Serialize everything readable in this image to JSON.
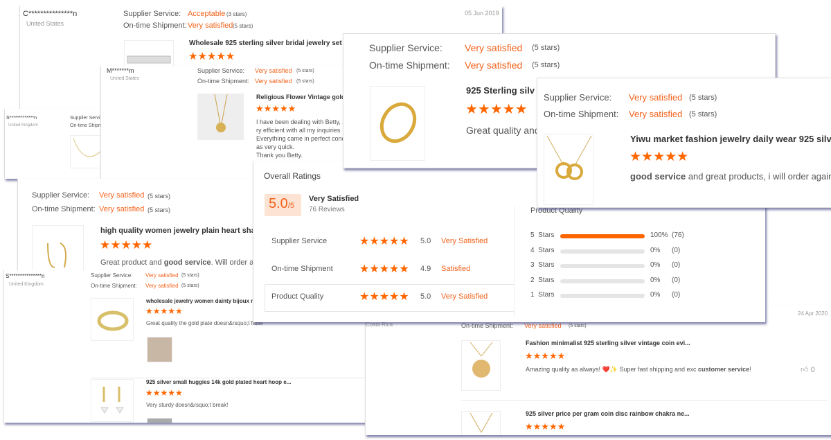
{
  "accent": "#f60",
  "cardA": {
    "name": "C***************n",
    "country": "United States",
    "supplier_label": "Supplier Service:",
    "supplier_value": "Acceptable",
    "supplier_stars": "(3 stars)",
    "shipment_label": "On-time Shipment:",
    "shipment_value": "Very satisfied",
    "shipment_stars": "(5 stars)",
    "date": "05 Jun 2019",
    "product_title": "Wholesale 925 sterling silver bridal jewelry set ova",
    "rating": 5
  },
  "cardB": {
    "name": "S*************n",
    "country": "United Kingdom",
    "supplier_label": "Supplier Service",
    "shipment_label": "On-time Shipme"
  },
  "cardC": {
    "name": "M*******m",
    "country": "United States",
    "supplier_label": "Supplier Service:",
    "supplier_value": "Very satisfied",
    "supplier_stars": "(5 stars)",
    "shipment_label": "On-time Shipment:",
    "shipment_value": "Very satisfied",
    "shipment_stars": "(5 stars)",
    "product_title": "Religious Flower Vintage golder",
    "comment": [
      "I have been dealing with Betty, a",
      "ry efficient with all my inquiries",
      "Everything came in perfect conc",
      "as very quick.",
      "Thank you Betty."
    ]
  },
  "cardD": {
    "supplier_label": "Supplier Service:",
    "supplier_value": "Very satisfied",
    "supplier_stars": "(5 stars)",
    "shipment_label": "On-time Shipment:",
    "shipment_value": "Very satisfied",
    "shipment_stars": "(5 stars)",
    "product_title": "high quality women jewelry plain heart shape b",
    "comment_pre": "Great product and ",
    "comment_bold": "good service",
    "comment_post": ". Will order agai"
  },
  "cardE": {
    "name": "S***************n",
    "country": "United Kingdom",
    "supplier_label": "Supplier Service:",
    "supplier_value": "Very satisfied",
    "supplier_stars": "(5 stars)",
    "shipment_label": "On-time Shipment:",
    "shipment_value": "Very satisfied",
    "shipment_stars": "(5 stars)",
    "items": [
      {
        "title": "wholesale jewelry women dainty bijoux m",
        "comment": "Great quality the gold plate doesn&rsquo;t fade!"
      },
      {
        "title": "925 silver small huggies 14k gold plated heart hoop e...",
        "comment": "Very sturdy doesn&rsquo;t break!"
      }
    ]
  },
  "cardF": {
    "country": "Costa Rica",
    "date": "24 Apr 2020",
    "shipment_label": "On-time Shipment:",
    "shipment_value": "Very satisfied",
    "shipment_stars": "(5 stars)",
    "items": [
      {
        "title": "Fashion minimalist 925 sterling silver vintage coin evi...",
        "comment_pre": "Amazing quality as always! ❤️✨ Super fast shipping and exc ",
        "comment_bold": "customer service",
        "comment_post": "!",
        "likes": "0"
      },
      {
        "title": "925 silver price per gram coin disc rainbow chakra ne..."
      }
    ]
  },
  "overall": {
    "heading": "Overall Ratings",
    "score": "5.0",
    "out_of": "/5",
    "summary": "Very Satisfied",
    "reviews": "76 Reviews",
    "rows": [
      {
        "label": "Supplier Service",
        "score": "5.0",
        "verdict": "Very Satisfied"
      },
      {
        "label": "On-time Shipment",
        "score": "4.9",
        "verdict": "Satisfied"
      },
      {
        "label": "Product Quality",
        "score": "5.0",
        "verdict": "Very Satisfied"
      }
    ],
    "pq_heading": "Product Quality",
    "dist": [
      {
        "label": "5  Stars",
        "pct": 100,
        "pct_text": "100%",
        "count": "(76)"
      },
      {
        "label": "4  Stars",
        "pct": 0,
        "pct_text": "0%",
        "count": "(0)"
      },
      {
        "label": "3  Stars",
        "pct": 0,
        "pct_text": "0%",
        "count": "(0)"
      },
      {
        "label": "2  Stars",
        "pct": 0,
        "pct_text": "0%",
        "count": "(0)"
      },
      {
        "label": "1  Stars",
        "pct": 0,
        "pct_text": "0%",
        "count": "(0)"
      }
    ]
  },
  "cardH": {
    "supplier_label": "Supplier Service:",
    "supplier_value": "Very satisfied",
    "supplier_stars": "(5 stars)",
    "shipment_label": "On-time Shipment:",
    "shipment_value": "Very satisfied",
    "shipment_stars": "(5 stars)",
    "product_title": "925 Sterling silv",
    "comment": "Great quality and"
  },
  "cardI": {
    "supplier_label": "Supplier Service:",
    "supplier_value": "Very satisfied",
    "supplier_stars": "(5 stars)",
    "shipment_label": "On-time Shipment:",
    "shipment_value": "Very satisfied",
    "shipment_stars": "(5 stars)",
    "product_title": "Yiwu market fashion jewelry daily wear 925 silver",
    "comment_bold": "good service",
    "comment_post": " and great products, i will order again"
  },
  "stars": "★★★★★"
}
